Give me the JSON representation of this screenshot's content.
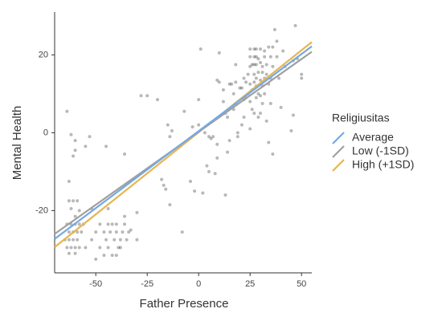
{
  "chart_data": {
    "type": "scatter",
    "x_label": "Father Presence",
    "y_label": "Mental Health",
    "xlim": [
      -70,
      55
    ],
    "ylim": [
      -36,
      31
    ],
    "xticks": [
      -50,
      -25,
      0,
      25,
      50
    ],
    "yticks": [
      -20,
      0,
      20
    ],
    "legend_title": "Religiusitas",
    "point_color": "#000000",
    "points": {
      "x": [
        -64,
        -62,
        -60,
        -60,
        -61,
        -55,
        -53,
        -45,
        -36,
        -63,
        -63,
        -61,
        -59,
        -62,
        -60,
        -58,
        -64,
        -62,
        -60,
        -58,
        -56,
        -63,
        -61,
        -59,
        -57,
        -65,
        -63,
        -61,
        -59,
        -64,
        -62,
        -60,
        -58,
        -63,
        -60,
        -55,
        -52,
        -50,
        -48,
        -48,
        -46,
        -45,
        -44,
        -43,
        -42,
        -41,
        -40,
        -40,
        -39,
        -38,
        -37,
        -36,
        -35,
        -34,
        -46,
        -44,
        -42,
        -40,
        -38,
        -50,
        -52,
        -44,
        -36,
        -33,
        -30,
        -30,
        -28,
        -25,
        -20,
        -15,
        -14,
        -13,
        -18,
        -17,
        -16,
        -14,
        -8,
        -7,
        -4,
        -3,
        -2,
        0,
        0,
        1,
        2,
        3,
        4,
        5,
        5,
        7,
        6,
        8,
        9,
        10,
        9,
        9,
        10,
        13,
        14,
        12,
        12,
        13,
        14,
        15,
        15,
        16,
        17,
        17,
        18,
        18,
        19,
        19,
        18,
        20,
        21,
        22,
        22,
        22,
        23,
        23,
        24,
        24,
        25,
        25,
        25,
        25,
        25,
        26,
        26,
        26,
        27,
        27,
        27,
        27,
        27,
        27,
        28,
        28,
        28,
        28,
        28,
        28,
        29,
        29,
        29,
        29,
        30,
        30,
        30,
        30,
        30,
        31,
        31,
        31,
        31,
        32,
        32,
        32,
        32,
        33,
        33,
        33,
        34,
        34,
        34,
        35,
        35,
        35,
        36,
        36,
        36,
        37,
        38,
        38,
        39,
        40,
        41,
        42,
        45,
        46,
        46,
        47,
        48,
        50,
        50,
        21,
        25
      ],
      "y": [
        5.5,
        -0.5,
        -2,
        -4.5,
        -6,
        -3.5,
        -1,
        -3.5,
        -5.5,
        -12.5,
        -17.5,
        -17.5,
        -17.5,
        -19.5,
        -21.5,
        -20,
        -23.5,
        -23.5,
        -23.5,
        -23.5,
        -23.5,
        -25.5,
        -25.5,
        -25.5,
        -25.5,
        -27.5,
        -27.5,
        -27.5,
        -27.5,
        -29.5,
        -29.5,
        -29.5,
        -29.5,
        -31,
        -31,
        -29.5,
        -27.5,
        -25.5,
        -29.5,
        -23.5,
        -25.5,
        -27.5,
        -23.5,
        -25.5,
        -23.5,
        -27.5,
        -23.5,
        -25.5,
        -29.5,
        -27.5,
        -25.5,
        -23.5,
        -27.5,
        -25.5,
        -31.5,
        -29.5,
        -31.5,
        -31.5,
        -29.5,
        -32.5,
        -19.5,
        -19.5,
        -21.5,
        -25,
        -20.5,
        -27.5,
        9.5,
        9.5,
        8.5,
        2,
        -1,
        0.5,
        -12,
        -13.5,
        -14.5,
        -18.5,
        -25.5,
        5.5,
        -12.5,
        1.5,
        -15,
        2,
        8.5,
        21.5,
        -15.5,
        0,
        -8.5,
        -10,
        -1,
        -1,
        -1.5,
        -10.5,
        13.5,
        13,
        -3,
        -6.5,
        20.5,
        -16,
        -5,
        11,
        8,
        5,
        4,
        -2,
        12.5,
        12.5,
        6,
        10,
        7.5,
        13,
        0,
        -1,
        17.5,
        11.5,
        11.5,
        14,
        8.5,
        4,
        9,
        13,
        15,
        10,
        8,
        21.5,
        19.5,
        17,
        12.5,
        11,
        17.5,
        6,
        21.5,
        19.5,
        17.5,
        15,
        13,
        5,
        21.5,
        19.5,
        17.5,
        14,
        12,
        9,
        19,
        15.5,
        10,
        4,
        21.5,
        18,
        13.5,
        9.5,
        5,
        17,
        15.5,
        12,
        7.5,
        21,
        19.5,
        14,
        10,
        17.5,
        15,
        3,
        22,
        12.5,
        -2.5,
        19.5,
        14,
        7.5,
        22,
        17,
        -5.5,
        26.5,
        23.5,
        19.5,
        14,
        6.5,
        21,
        17,
        0.5,
        18.5,
        4.5,
        27.5,
        19,
        15,
        14,
        2,
        1
      ]
    },
    "series": [
      {
        "name": "Average",
        "color": "#74a9e2",
        "x": [
          -70,
          55
        ],
        "values": [
          -27.3,
          22.2
        ]
      },
      {
        "name": "Low (-1SD)",
        "color": "#a0a0a0",
        "x": [
          -70,
          55
        ],
        "values": [
          -26,
          20.8
        ]
      },
      {
        "name": "High (+1SD)",
        "color": "#e8b450",
        "x": [
          -70,
          55
        ],
        "values": [
          -29.4,
          23.3
        ]
      }
    ]
  }
}
